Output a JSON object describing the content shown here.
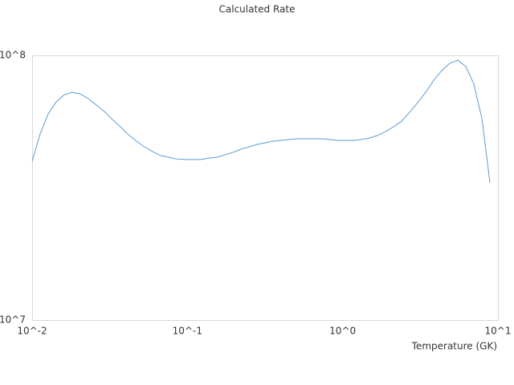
{
  "chart_data": {
    "type": "line",
    "title": "Calculated Rate",
    "x_label": "Temperature (GK)",
    "x_log": true,
    "y_log": true,
    "grid": false,
    "xlim": [
      0.01,
      10
    ],
    "ylim": [
      10000000,
      100000000
    ],
    "xticks": [
      {
        "value": 0.01,
        "label": "10^-2"
      },
      {
        "value": 0.1,
        "label": "10^-1"
      },
      {
        "value": 1,
        "label": "10^0"
      },
      {
        "value": 10,
        "label": "10^1"
      }
    ],
    "yticks": [
      {
        "value": 10000000,
        "label": "10^7"
      },
      {
        "value": 100000000,
        "label": "10^8"
      }
    ],
    "series": [
      {
        "name": "Calculated Rate",
        "color": "#5b9bd5",
        "x": [
          0.01,
          0.01127,
          0.01269,
          0.01429,
          0.0161,
          0.01814,
          0.02043,
          0.02301,
          0.02593,
          0.02921,
          0.0329,
          0.03707,
          0.04176,
          0.04704,
          0.05299,
          0.0597,
          0.0673,
          0.0758,
          0.0853,
          0.0961,
          0.1083,
          0.122,
          0.1374,
          0.1548,
          0.1743,
          0.1964,
          0.2213,
          0.2493,
          0.2808,
          0.3162,
          0.3563,
          0.4013,
          0.4521,
          0.5094,
          0.574,
          0.646,
          0.728,
          0.82,
          0.924,
          1.041,
          1.173,
          1.321,
          1.488,
          1.676,
          1.888,
          2.127,
          2.396,
          2.699,
          3.041,
          3.426,
          3.859,
          4.348,
          4.897,
          5.517,
          6.215,
          7.001,
          7.887,
          8.885
        ],
        "values": [
          39800000,
          50500000,
          60100000,
          66700000,
          71000000,
          72500000,
          71500000,
          68600000,
          64900000,
          61300000,
          57200000,
          53700000,
          50100000,
          47400000,
          45100000,
          43300000,
          41800000,
          41200000,
          40600000,
          40400000,
          40400000,
          40400000,
          40900000,
          41200000,
          42100000,
          43000000,
          44200000,
          45100000,
          46100000,
          46700000,
          47400000,
          47700000,
          48100000,
          48400000,
          48400000,
          48400000,
          48400000,
          48100000,
          47700000,
          47700000,
          47700000,
          48100000,
          48700000,
          49800000,
          51500000,
          53700000,
          56400000,
          60900000,
          66300000,
          72500000,
          80500000,
          87600000,
          93300000,
          95900000,
          90700000,
          77800000,
          57600000,
          33000000
        ]
      }
    ]
  }
}
